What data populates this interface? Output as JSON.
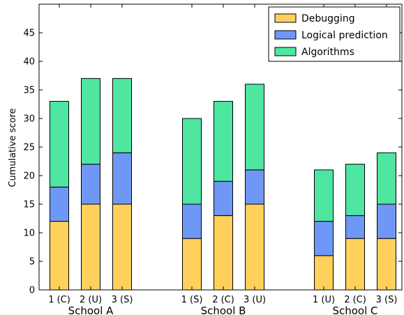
{
  "chart_data": {
    "type": "bar",
    "stacked": true,
    "title": "",
    "xlabel": "",
    "ylabel": "Cumulative score",
    "ylim": [
      0,
      50
    ],
    "yticks": [
      0,
      5,
      10,
      15,
      20,
      25,
      30,
      35,
      40,
      45
    ],
    "grid": false,
    "legend_position": "top-right",
    "groups": [
      "School A",
      "School B",
      "School C"
    ],
    "categories": [
      "1 (C)",
      "2 (U)",
      "3 (S)",
      "1 (S)",
      "2 (C)",
      "3 (U)",
      "1 (U)",
      "2 (C)",
      "3 (S)"
    ],
    "category_group": [
      0,
      0,
      0,
      1,
      1,
      1,
      2,
      2,
      2
    ],
    "series": [
      {
        "name": "Debugging",
        "color": "#ffd15c",
        "values": [
          12,
          15,
          15,
          9,
          13,
          15,
          6,
          9,
          9
        ]
      },
      {
        "name": "Logical prediction",
        "color": "#6f97f5",
        "values": [
          6,
          7,
          9,
          6,
          6,
          6,
          6,
          4,
          6
        ]
      },
      {
        "name": "Algorithms",
        "color": "#4ee6a0",
        "values": [
          15,
          15,
          13,
          15,
          14,
          15,
          9,
          9,
          9
        ]
      }
    ]
  }
}
